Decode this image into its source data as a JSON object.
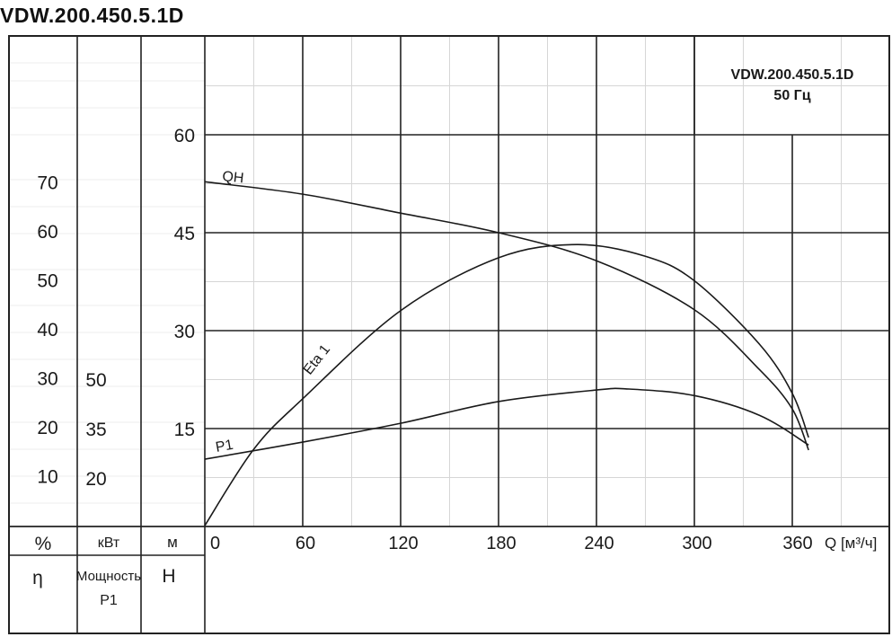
{
  "page_title": "VDW.200.450.5.1D",
  "chart_data": {
    "type": "line",
    "title": "VDW.200.450.5.1D",
    "subtitle": "50 Гц",
    "xlabel": "Q [м³/ч]",
    "x_ticks": [
      "0",
      "60",
      "120",
      "180",
      "240",
      "300",
      "360"
    ],
    "xlim": [
      0,
      420
    ],
    "grid": true,
    "axes": {
      "eta": {
        "unit": "%",
        "symbol": "η",
        "ticks": [
          "70",
          "60",
          "50",
          "40",
          "30",
          "20",
          "10"
        ]
      },
      "power": {
        "unit": "кВт",
        "symbol": "Мощность",
        "symbol2": "P1",
        "ticks": [
          "50",
          "35",
          "20"
        ]
      },
      "head": {
        "unit": "м",
        "symbol": "H",
        "ticks": [
          "60",
          "45",
          "30",
          "15"
        ],
        "ylim": [
          0,
          60
        ]
      }
    },
    "series": [
      {
        "name": "QH",
        "axis": "head",
        "points": [
          [
            0,
            52.8
          ],
          [
            60,
            50.9
          ],
          [
            120,
            48
          ],
          [
            180,
            45
          ],
          [
            240,
            40.7
          ],
          [
            300,
            33.2
          ],
          [
            340,
            24
          ],
          [
            360,
            18
          ],
          [
            370,
            11.7
          ]
        ]
      },
      {
        "name": "Eta 1",
        "axis": "eta",
        "points": [
          [
            0,
            0
          ],
          [
            30,
            15.6
          ],
          [
            60,
            25.9
          ],
          [
            120,
            43.9
          ],
          [
            180,
            54.7
          ],
          [
            228,
            57.4
          ],
          [
            270,
            55
          ],
          [
            300,
            50
          ],
          [
            340,
            37
          ],
          [
            360,
            27
          ],
          [
            370,
            18
          ]
        ]
      },
      {
        "name": "P1",
        "axis": "power",
        "points": [
          [
            0,
            25.7
          ],
          [
            60,
            30.9
          ],
          [
            120,
            36.6
          ],
          [
            180,
            43.2
          ],
          [
            240,
            46.7
          ],
          [
            260,
            47
          ],
          [
            300,
            45
          ],
          [
            340,
            39
          ],
          [
            370,
            30
          ]
        ]
      }
    ]
  }
}
